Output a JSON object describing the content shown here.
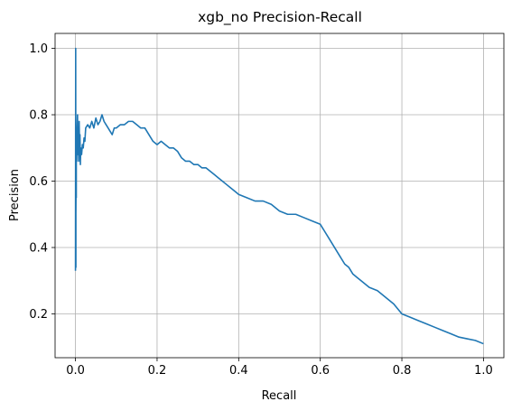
{
  "chart_data": {
    "type": "line",
    "title": "xgb_no Precision-Recall",
    "xlabel": "Recall",
    "ylabel": "Precision",
    "xlim": [
      -0.05,
      1.05
    ],
    "ylim": [
      0.068,
      1.045
    ],
    "grid": true,
    "x_ticks": [
      0.0,
      0.2,
      0.4,
      0.6,
      0.8,
      1.0
    ],
    "x_tick_labels": [
      "0.0",
      "0.2",
      "0.4",
      "0.6",
      "0.8",
      "1.0"
    ],
    "y_ticks": [
      0.2,
      0.4,
      0.6,
      0.8,
      1.0
    ],
    "y_tick_labels": [
      "0.2",
      "0.4",
      "0.6",
      "0.8",
      "1.0"
    ],
    "colors": {
      "line": "#1f77b4",
      "grid": "#b0b0b0",
      "axes": "#000000"
    },
    "series": [
      {
        "x": [
          0.0,
          0.0005,
          0.001,
          0.001,
          0.0015,
          0.002,
          0.002,
          0.003,
          0.004,
          0.005,
          0.006,
          0.007,
          0.008,
          0.009,
          0.01,
          0.011,
          0.012,
          0.013,
          0.015,
          0.017,
          0.019,
          0.021,
          0.023,
          0.025,
          0.03,
          0.035,
          0.04,
          0.045,
          0.05,
          0.055,
          0.06,
          0.065,
          0.07,
          0.075,
          0.08,
          0.085,
          0.09,
          0.095,
          0.1,
          0.11,
          0.12,
          0.13,
          0.14,
          0.15,
          0.16,
          0.17,
          0.18,
          0.19,
          0.2,
          0.21,
          0.22,
          0.23,
          0.24,
          0.25,
          0.26,
          0.27,
          0.28,
          0.29,
          0.3,
          0.31,
          0.32,
          0.33,
          0.34,
          0.35,
          0.36,
          0.37,
          0.38,
          0.39,
          0.4,
          0.42,
          0.44,
          0.46,
          0.48,
          0.5,
          0.52,
          0.54,
          0.56,
          0.58,
          0.6,
          0.61,
          0.62,
          0.63,
          0.64,
          0.65,
          0.66,
          0.67,
          0.68,
          0.69,
          0.7,
          0.72,
          0.74,
          0.76,
          0.78,
          0.8,
          0.82,
          0.84,
          0.86,
          0.88,
          0.9,
          0.92,
          0.94,
          0.96,
          0.98,
          1.0
        ],
        "values": [
          0.33,
          1.0,
          0.34,
          0.5,
          0.6,
          0.55,
          0.7,
          0.66,
          0.75,
          0.8,
          0.68,
          0.72,
          0.66,
          0.78,
          0.7,
          0.74,
          0.65,
          0.7,
          0.68,
          0.71,
          0.7,
          0.73,
          0.72,
          0.76,
          0.77,
          0.76,
          0.78,
          0.76,
          0.79,
          0.77,
          0.78,
          0.8,
          0.78,
          0.77,
          0.76,
          0.75,
          0.74,
          0.76,
          0.76,
          0.77,
          0.77,
          0.78,
          0.78,
          0.77,
          0.76,
          0.76,
          0.74,
          0.72,
          0.71,
          0.72,
          0.71,
          0.7,
          0.7,
          0.69,
          0.67,
          0.66,
          0.66,
          0.65,
          0.65,
          0.64,
          0.64,
          0.63,
          0.62,
          0.61,
          0.6,
          0.59,
          0.58,
          0.57,
          0.56,
          0.55,
          0.54,
          0.54,
          0.53,
          0.51,
          0.5,
          0.5,
          0.49,
          0.48,
          0.47,
          0.45,
          0.43,
          0.41,
          0.39,
          0.37,
          0.35,
          0.34,
          0.32,
          0.31,
          0.3,
          0.28,
          0.27,
          0.25,
          0.23,
          0.2,
          0.19,
          0.18,
          0.17,
          0.16,
          0.15,
          0.14,
          0.13,
          0.125,
          0.12,
          0.11
        ]
      }
    ]
  }
}
